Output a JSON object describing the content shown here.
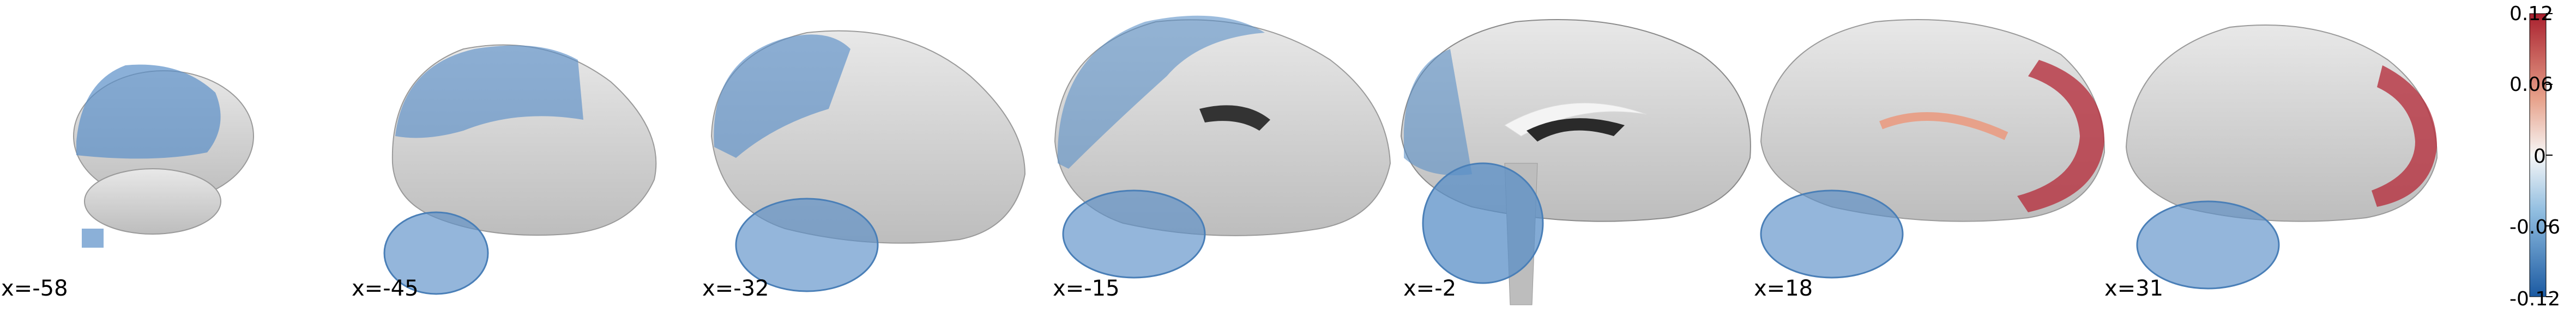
{
  "slices": [
    {
      "label": "x=-58"
    },
    {
      "label": "x=-45"
    },
    {
      "label": "x=-32"
    },
    {
      "label": "x=-15"
    },
    {
      "label": "x=-2"
    },
    {
      "label": "x=18"
    },
    {
      "label": "x=31"
    }
  ],
  "colorbar": {
    "ticks": [
      "0.12",
      "0.06",
      "0",
      "-0.06",
      "-0.12"
    ],
    "colors": {
      "top": "#a9202e",
      "upper": "#e7a18a",
      "mid": "#f7f7f7",
      "lower": "#90bde0",
      "bottom": "#1b5aa2"
    }
  },
  "overlay_colors": {
    "negative": "#5a8fc7",
    "positive": "#b5313f",
    "positive_light": "#e7a18a"
  }
}
